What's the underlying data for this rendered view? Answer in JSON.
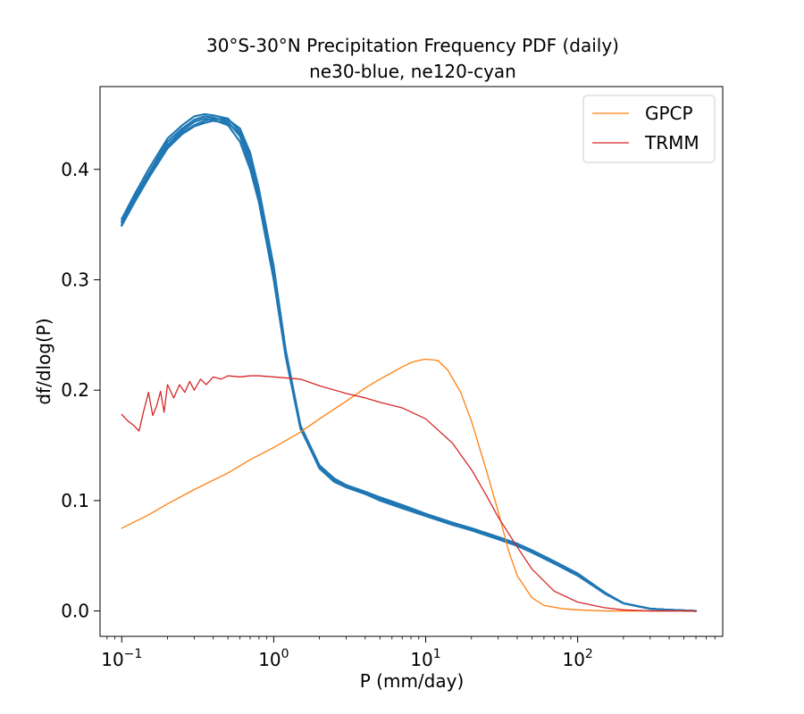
{
  "chart_data": {
    "type": "line",
    "title": "30°S-30°N Precipitation Frequency PDF (daily)",
    "subtitle": "ne30-blue, ne120-cyan",
    "xlabel": "P (mm/day)",
    "ylabel": "df/dlog(P)",
    "xscale": "log",
    "xlim": [
      0.072,
      900
    ],
    "ylim": [
      -0.023,
      0.475
    ],
    "x_ticks": [
      {
        "value": 0.1,
        "base": "10",
        "exp": "−1"
      },
      {
        "value": 1,
        "base": "10",
        "exp": "0"
      },
      {
        "value": 10,
        "base": "10",
        "exp": "1"
      },
      {
        "value": 100,
        "base": "10",
        "exp": "2"
      }
    ],
    "y_ticks": [
      {
        "value": 0.0,
        "label": "0.0"
      },
      {
        "value": 0.1,
        "label": "0.1"
      },
      {
        "value": 0.2,
        "label": "0.2"
      },
      {
        "value": 0.3,
        "label": "0.3"
      },
      {
        "value": 0.4,
        "label": "0.4"
      }
    ],
    "legend": {
      "position": "top-right",
      "entries": [
        "GPCP",
        "TRMM"
      ]
    },
    "series": [
      {
        "name": "GPCP",
        "color": "#ff7f0e",
        "legend": true,
        "x": [
          0.1,
          0.15,
          0.2,
          0.3,
          0.5,
          0.7,
          1.0,
          1.5,
          2.0,
          3.0,
          4.0,
          5.0,
          6.0,
          7.0,
          8.0,
          9.0,
          10.0,
          12.0,
          14.0,
          17.0,
          20.0,
          25.0,
          30.0,
          35.0,
          40.0,
          50.0,
          60.0,
          80.0,
          100.0,
          150.0,
          300.0,
          600.0
        ],
        "y": [
          0.075,
          0.087,
          0.097,
          0.11,
          0.125,
          0.137,
          0.148,
          0.162,
          0.174,
          0.19,
          0.202,
          0.21,
          0.216,
          0.221,
          0.225,
          0.227,
          0.228,
          0.227,
          0.218,
          0.198,
          0.172,
          0.128,
          0.09,
          0.055,
          0.032,
          0.012,
          0.005,
          0.002,
          0.001,
          0.0,
          0.0,
          0.0
        ]
      },
      {
        "name": "TRMM",
        "color": "#d62728",
        "legend": true,
        "x": [
          0.1,
          0.11,
          0.12,
          0.13,
          0.14,
          0.15,
          0.16,
          0.17,
          0.18,
          0.19,
          0.2,
          0.22,
          0.24,
          0.26,
          0.28,
          0.3,
          0.33,
          0.36,
          0.4,
          0.45,
          0.5,
          0.6,
          0.7,
          0.8,
          1.0,
          1.5,
          2.0,
          3.0,
          4.0,
          5.0,
          7.0,
          10.0,
          15.0,
          20.0,
          25.0,
          30.0,
          40.0,
          50.0,
          70.0,
          100.0,
          150.0,
          200.0,
          300.0,
          600.0
        ],
        "y": [
          0.178,
          0.172,
          0.168,
          0.163,
          0.182,
          0.198,
          0.177,
          0.186,
          0.199,
          0.18,
          0.205,
          0.193,
          0.205,
          0.198,
          0.208,
          0.2,
          0.21,
          0.205,
          0.212,
          0.21,
          0.213,
          0.212,
          0.213,
          0.213,
          0.212,
          0.21,
          0.204,
          0.197,
          0.193,
          0.189,
          0.184,
          0.174,
          0.152,
          0.128,
          0.105,
          0.085,
          0.058,
          0.038,
          0.018,
          0.008,
          0.003,
          0.001,
          0.0,
          0.0
        ]
      },
      {
        "name": "ne30-1",
        "color": "#1f77b4",
        "legend": false,
        "x": [
          0.1,
          0.12,
          0.15,
          0.2,
          0.25,
          0.3,
          0.35,
          0.4,
          0.5,
          0.6,
          0.7,
          0.8,
          1.0,
          1.2,
          1.5,
          2.0,
          2.5,
          3.0,
          4.0,
          5.0,
          7.0,
          10.0,
          15.0,
          20.0,
          30.0,
          40.0,
          50.0,
          70.0,
          100.0,
          150.0,
          200.0,
          300.0,
          400.0,
          600.0
        ],
        "y": [
          0.35,
          0.37,
          0.393,
          0.422,
          0.435,
          0.443,
          0.446,
          0.445,
          0.44,
          0.425,
          0.4,
          0.37,
          0.3,
          0.23,
          0.165,
          0.13,
          0.118,
          0.113,
          0.107,
          0.102,
          0.095,
          0.087,
          0.079,
          0.074,
          0.066,
          0.06,
          0.054,
          0.044,
          0.033,
          0.016,
          0.007,
          0.002,
          0.001,
          0.0
        ]
      },
      {
        "name": "ne30-2",
        "color": "#1f77b4",
        "legend": false,
        "x": [
          0.1,
          0.12,
          0.15,
          0.2,
          0.25,
          0.3,
          0.35,
          0.4,
          0.5,
          0.6,
          0.7,
          0.8,
          1.0,
          1.2,
          1.5,
          2.0,
          2.5,
          3.0,
          4.0,
          5.0,
          7.0,
          10.0,
          15.0,
          20.0,
          30.0,
          40.0,
          50.0,
          70.0,
          100.0,
          150.0,
          200.0,
          300.0,
          400.0,
          600.0
        ],
        "y": [
          0.353,
          0.373,
          0.396,
          0.425,
          0.437,
          0.445,
          0.448,
          0.447,
          0.443,
          0.43,
          0.405,
          0.375,
          0.305,
          0.232,
          0.166,
          0.131,
          0.119,
          0.114,
          0.108,
          0.103,
          0.096,
          0.088,
          0.08,
          0.075,
          0.067,
          0.061,
          0.055,
          0.045,
          0.034,
          0.017,
          0.007,
          0.002,
          0.001,
          0.0
        ]
      },
      {
        "name": "ne30-3",
        "color": "#1f77b4",
        "legend": false,
        "x": [
          0.1,
          0.12,
          0.15,
          0.2,
          0.25,
          0.3,
          0.35,
          0.4,
          0.5,
          0.6,
          0.7,
          0.8,
          1.0,
          1.2,
          1.5,
          2.0,
          2.5,
          3.0,
          4.0,
          5.0,
          7.0,
          10.0,
          15.0,
          20.0,
          30.0,
          40.0,
          50.0,
          70.0,
          100.0,
          150.0,
          200.0,
          300.0,
          400.0,
          600.0
        ],
        "y": [
          0.355,
          0.376,
          0.4,
          0.428,
          0.44,
          0.448,
          0.45,
          0.449,
          0.446,
          0.434,
          0.41,
          0.378,
          0.31,
          0.235,
          0.168,
          0.132,
          0.12,
          0.114,
          0.107,
          0.101,
          0.094,
          0.087,
          0.079,
          0.074,
          0.066,
          0.06,
          0.054,
          0.044,
          0.033,
          0.016,
          0.007,
          0.002,
          0.001,
          0.0
        ]
      },
      {
        "name": "ne30-4",
        "color": "#1f77b4",
        "legend": false,
        "x": [
          0.1,
          0.12,
          0.15,
          0.2,
          0.25,
          0.3,
          0.35,
          0.4,
          0.5,
          0.6,
          0.7,
          0.8,
          1.0,
          1.2,
          1.5,
          2.0,
          2.5,
          3.0,
          4.0,
          5.0,
          7.0,
          10.0,
          15.0,
          20.0,
          30.0,
          40.0,
          50.0,
          70.0,
          100.0,
          150.0,
          200.0,
          300.0,
          400.0,
          600.0
        ],
        "y": [
          0.352,
          0.371,
          0.395,
          0.421,
          0.433,
          0.44,
          0.444,
          0.446,
          0.445,
          0.437,
          0.415,
          0.382,
          0.312,
          0.236,
          0.167,
          0.13,
          0.118,
          0.112,
          0.106,
          0.1,
          0.093,
          0.086,
          0.078,
          0.073,
          0.065,
          0.059,
          0.053,
          0.043,
          0.032,
          0.016,
          0.007,
          0.002,
          0.001,
          0.0
        ]
      },
      {
        "name": "ne30-5",
        "color": "#1f77b4",
        "legend": false,
        "x": [
          0.1,
          0.12,
          0.15,
          0.2,
          0.25,
          0.3,
          0.35,
          0.4,
          0.5,
          0.6,
          0.7,
          0.8,
          1.0,
          1.2,
          1.5,
          2.0,
          2.5,
          3.0,
          4.0,
          5.0,
          7.0,
          10.0,
          15.0,
          20.0,
          30.0,
          40.0,
          50.0,
          70.0,
          100.0,
          150.0,
          200.0,
          300.0,
          400.0,
          600.0
        ],
        "y": [
          0.349,
          0.369,
          0.392,
          0.419,
          0.432,
          0.439,
          0.442,
          0.444,
          0.442,
          0.432,
          0.412,
          0.38,
          0.308,
          0.233,
          0.166,
          0.129,
          0.117,
          0.112,
          0.106,
          0.101,
          0.094,
          0.087,
          0.079,
          0.074,
          0.066,
          0.06,
          0.054,
          0.044,
          0.033,
          0.016,
          0.007,
          0.002,
          0.001,
          0.0
        ]
      }
    ]
  }
}
